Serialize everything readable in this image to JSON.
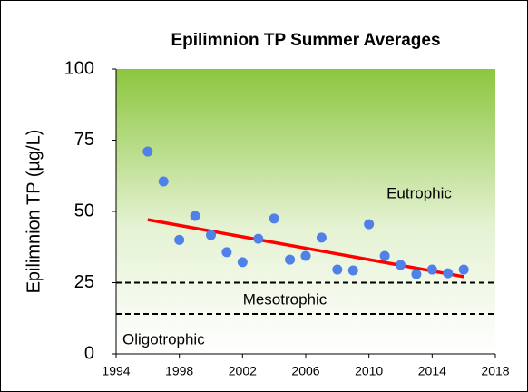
{
  "chart_data": {
    "type": "scatter",
    "title": "Epilimnion  TP Summer Averages",
    "y_label": "Epilimnion TP (µg/L)",
    "x": [
      1996,
      1997,
      1998,
      1999,
      2000,
      2001,
      2002,
      2003,
      2004,
      2005,
      2006,
      2007,
      2008,
      2009,
      2010,
      2011,
      2012,
      2013,
      2014,
      2015,
      2016
    ],
    "series": [
      {
        "color": "#4f81e8",
        "values": [
          71,
          60.5,
          40,
          48.4,
          41.7,
          35.7,
          32.2,
          40.4,
          47.5,
          33.1,
          34.4,
          40.8,
          29.6,
          29.3,
          45.5,
          34.4,
          31.2,
          28,
          29.6,
          28.3,
          29.6
        ]
      }
    ],
    "trendline": {
      "color": "#ff0000",
      "x": [
        1996,
        2016
      ],
      "values": [
        47.1,
        27.1
      ]
    },
    "reference_lines": [
      {
        "value": 25
      },
      {
        "value": 14
      }
    ],
    "annotations": [
      "Eutrophic",
      "Mesotrophic",
      "Oligotrophic"
    ],
    "xlim": [
      1994,
      2018
    ],
    "xticks": [
      1994,
      1998,
      2002,
      2006,
      2010,
      2014,
      2018
    ],
    "ylim": [
      0,
      100
    ],
    "yticks": [
      0,
      25,
      50,
      75,
      100
    ]
  }
}
